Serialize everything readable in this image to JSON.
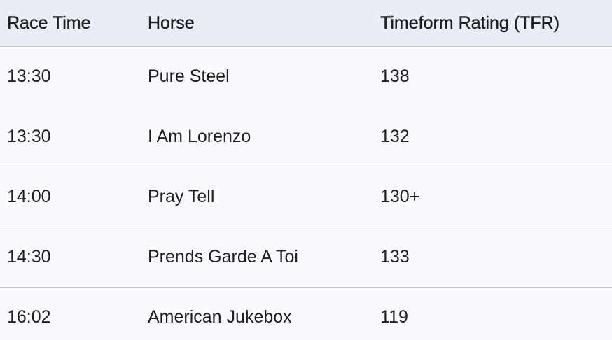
{
  "table": {
    "headers": [
      "Race Time",
      "Horse",
      "Timeform Rating (TFR)"
    ],
    "rows": [
      [
        "13:30",
        "Pure Steel",
        "138"
      ],
      [
        "13:30",
        "I Am Lorenzo",
        "132"
      ],
      [
        "14:00",
        "Pray Tell",
        "130+"
      ],
      [
        "14:30",
        "Prends Garde A Toi",
        "133"
      ],
      [
        "16:02",
        "American Jukebox",
        "119"
      ]
    ]
  },
  "colors": {
    "header_bg": "#e9eef6",
    "row_bg": "#f8fafd",
    "divider": "#c7c7c7"
  }
}
